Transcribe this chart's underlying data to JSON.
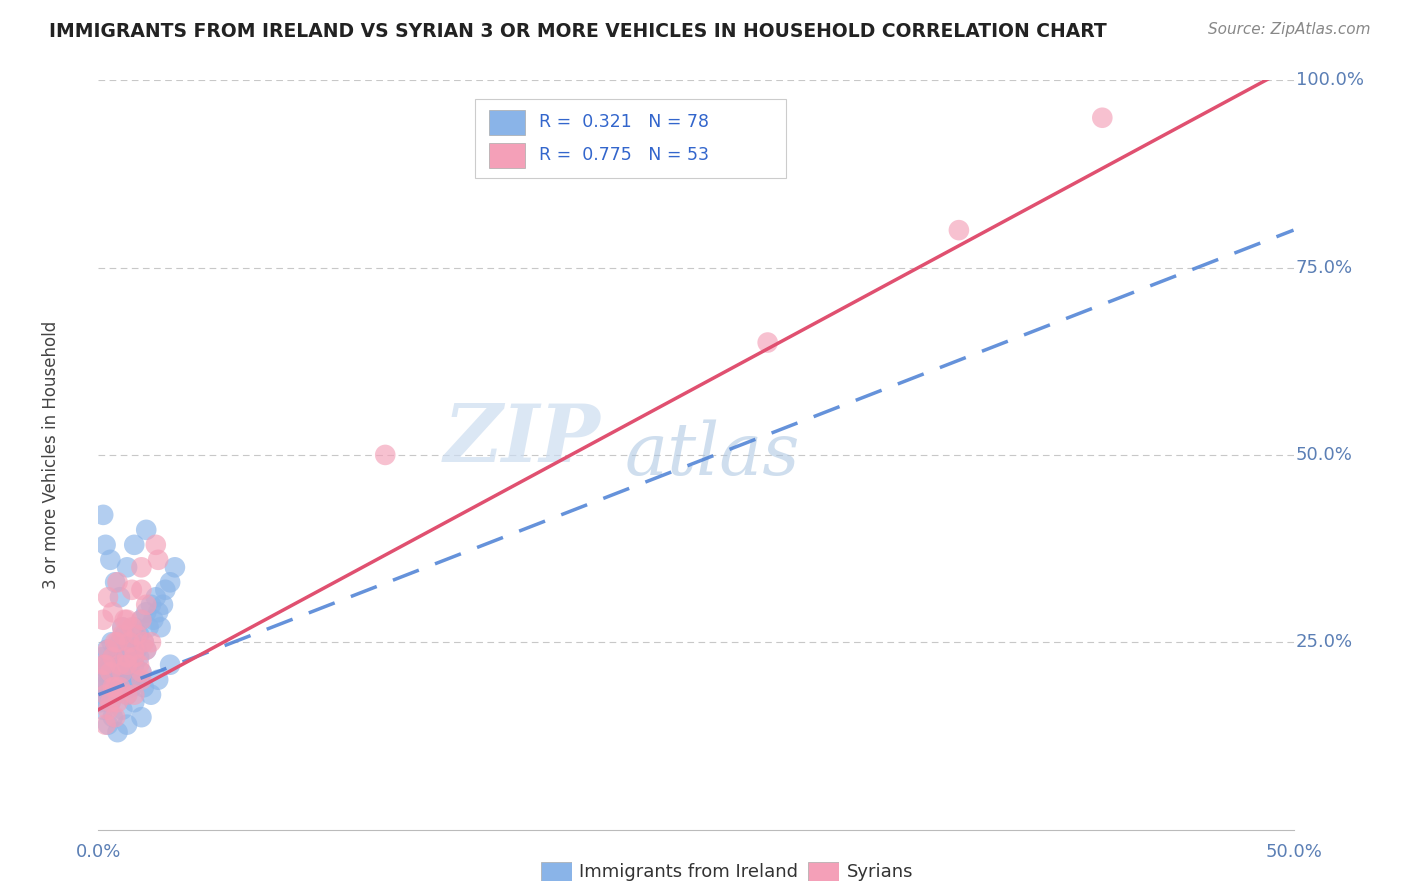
{
  "title": "IMMIGRANTS FROM IRELAND VS SYRIAN 3 OR MORE VEHICLES IN HOUSEHOLD CORRELATION CHART",
  "source": "Source: ZipAtlas.com",
  "yaxis_label": "3 or more Vehicles in Household",
  "legend1_label": "Immigrants from Ireland",
  "legend2_label": "Syrians",
  "R_ireland": 0.321,
  "N_ireland": 78,
  "R_syrian": 0.775,
  "N_syrian": 53,
  "ireland_color": "#8ab4e8",
  "syrian_color": "#f4a0b8",
  "ireland_line_color": "#4a7fd4",
  "syrian_line_color": "#e05070",
  "background_color": "#ffffff",
  "xlim": [
    0.0,
    0.5
  ],
  "ylim": [
    0.0,
    1.0
  ],
  "ireland_line_x0": 0.0,
  "ireland_line_y0": 0.18,
  "ireland_line_x1": 0.5,
  "ireland_line_y1": 0.8,
  "syrian_line_x0": 0.0,
  "syrian_line_y0": 0.16,
  "syrian_line_x1": 0.5,
  "syrian_line_y1": 1.02,
  "ireland_scatter_x": [
    0.0005,
    0.001,
    0.0015,
    0.002,
    0.0025,
    0.003,
    0.0035,
    0.004,
    0.0045,
    0.005,
    0.0055,
    0.006,
    0.0065,
    0.007,
    0.0075,
    0.008,
    0.0085,
    0.009,
    0.0095,
    0.01,
    0.011,
    0.012,
    0.013,
    0.014,
    0.015,
    0.016,
    0.017,
    0.018,
    0.019,
    0.02,
    0.021,
    0.022,
    0.023,
    0.024,
    0.025,
    0.026,
    0.027,
    0.028,
    0.03,
    0.032,
    0.001,
    0.002,
    0.003,
    0.004,
    0.005,
    0.006,
    0.007,
    0.008,
    0.009,
    0.01,
    0.011,
    0.012,
    0.013,
    0.014,
    0.015,
    0.016,
    0.017,
    0.018,
    0.019,
    0.02,
    0.004,
    0.006,
    0.008,
    0.01,
    0.012,
    0.015,
    0.018,
    0.022,
    0.025,
    0.03,
    0.002,
    0.003,
    0.005,
    0.007,
    0.009,
    0.012,
    0.015,
    0.02
  ],
  "ireland_scatter_y": [
    0.21,
    0.19,
    0.23,
    0.2,
    0.22,
    0.18,
    0.24,
    0.21,
    0.2,
    0.22,
    0.25,
    0.23,
    0.21,
    0.24,
    0.22,
    0.2,
    0.23,
    0.25,
    0.21,
    0.27,
    0.26,
    0.24,
    0.22,
    0.25,
    0.27,
    0.24,
    0.26,
    0.28,
    0.25,
    0.29,
    0.27,
    0.3,
    0.28,
    0.31,
    0.29,
    0.27,
    0.3,
    0.32,
    0.33,
    0.35,
    0.17,
    0.16,
    0.18,
    0.19,
    0.17,
    0.2,
    0.18,
    0.21,
    0.19,
    0.22,
    0.2,
    0.18,
    0.21,
    0.19,
    0.22,
    0.2,
    0.23,
    0.21,
    0.19,
    0.24,
    0.14,
    0.15,
    0.13,
    0.16,
    0.14,
    0.17,
    0.15,
    0.18,
    0.2,
    0.22,
    0.42,
    0.38,
    0.36,
    0.33,
    0.31,
    0.35,
    0.38,
    0.4
  ],
  "syrian_scatter_x": [
    0.001,
    0.002,
    0.003,
    0.004,
    0.005,
    0.006,
    0.007,
    0.008,
    0.009,
    0.01,
    0.011,
    0.012,
    0.013,
    0.014,
    0.015,
    0.016,
    0.017,
    0.018,
    0.019,
    0.02,
    0.004,
    0.006,
    0.008,
    0.01,
    0.012,
    0.015,
    0.018,
    0.022,
    0.003,
    0.005,
    0.007,
    0.009,
    0.012,
    0.015,
    0.018,
    0.02,
    0.002,
    0.004,
    0.006,
    0.008,
    0.01,
    0.014,
    0.018,
    0.024,
    0.003,
    0.007,
    0.012,
    0.018,
    0.025,
    0.36,
    0.42,
    0.12,
    0.28
  ],
  "syrian_scatter_y": [
    0.2,
    0.22,
    0.18,
    0.24,
    0.21,
    0.23,
    0.19,
    0.25,
    0.22,
    0.26,
    0.28,
    0.23,
    0.25,
    0.27,
    0.24,
    0.26,
    0.22,
    0.28,
    0.25,
    0.3,
    0.16,
    0.19,
    0.17,
    0.21,
    0.18,
    0.23,
    0.2,
    0.25,
    0.14,
    0.17,
    0.15,
    0.19,
    0.22,
    0.18,
    0.21,
    0.24,
    0.28,
    0.31,
    0.29,
    0.33,
    0.27,
    0.32,
    0.35,
    0.38,
    0.22,
    0.25,
    0.28,
    0.32,
    0.36,
    0.8,
    0.95,
    0.5,
    0.65
  ]
}
